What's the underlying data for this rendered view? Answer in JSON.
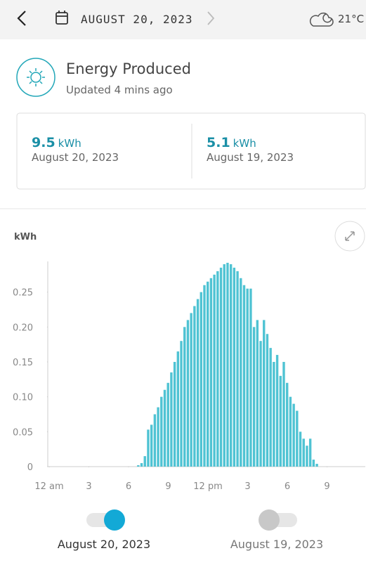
{
  "header": {
    "date": "AUGUST 20, 2023",
    "temperature": "21°C"
  },
  "summary": {
    "title": "Energy Produced",
    "updated": "Updated 4 mins ago",
    "cards": [
      {
        "value": 9.5,
        "unit": "kWh",
        "date": "August 20, 2023"
      },
      {
        "value": 5.1,
        "unit": "kWh",
        "date": "August 19, 2023"
      }
    ]
  },
  "chart_data": {
    "type": "bar",
    "y_label": "kWh",
    "color": "#4fc3d3",
    "x": [
      6.75,
      7,
      7.25,
      7.5,
      7.75,
      8,
      8.25,
      8.5,
      8.75,
      9,
      9.25,
      9.5,
      9.75,
      10,
      10.25,
      10.5,
      10.75,
      11,
      11.25,
      11.5,
      11.75,
      12,
      12.25,
      12.5,
      12.75,
      13,
      13.25,
      13.5,
      13.75,
      14,
      14.25,
      14.5,
      14.75,
      15,
      15.25,
      15.5,
      15.75,
      16,
      16.25,
      16.5,
      16.75,
      17,
      17.25,
      17.5,
      17.75,
      18,
      18.25,
      18.5,
      18.75,
      19,
      19.25,
      19.5,
      19.75,
      20,
      20.25
    ],
    "values": [
      0.002,
      0.005,
      0.015,
      0.053,
      0.06,
      0.075,
      0.085,
      0.1,
      0.11,
      0.12,
      0.135,
      0.15,
      0.165,
      0.18,
      0.2,
      0.21,
      0.22,
      0.23,
      0.24,
      0.25,
      0.26,
      0.265,
      0.27,
      0.275,
      0.28,
      0.285,
      0.29,
      0.292,
      0.29,
      0.285,
      0.28,
      0.27,
      0.26,
      0.255,
      0.255,
      0.2,
      0.21,
      0.18,
      0.21,
      0.19,
      0.17,
      0.15,
      0.16,
      0.13,
      0.15,
      0.12,
      0.1,
      0.09,
      0.08,
      0.05,
      0.04,
      0.03,
      0.04,
      0.01,
      0.004
    ],
    "xlim": [
      0,
      24
    ],
    "xticks": [
      {
        "value": 0,
        "label": "12 am"
      },
      3,
      6,
      9,
      {
        "value": 12,
        "label": "12 pm"
      },
      {
        "value": 15,
        "label": "3"
      },
      {
        "value": 18,
        "label": "6"
      },
      {
        "value": 21,
        "label": "9"
      }
    ],
    "ylim": [
      0,
      0.3
    ],
    "yticks": [
      0,
      0.05,
      {
        "value": 0.1,
        "label": "0.10"
      },
      0.15,
      {
        "value": 0.2,
        "label": "0.20"
      },
      0.25
    ]
  },
  "toggles": [
    {
      "label": "August 20, 2023",
      "on": true
    },
    {
      "label": "August 19, 2023",
      "on": false
    }
  ]
}
